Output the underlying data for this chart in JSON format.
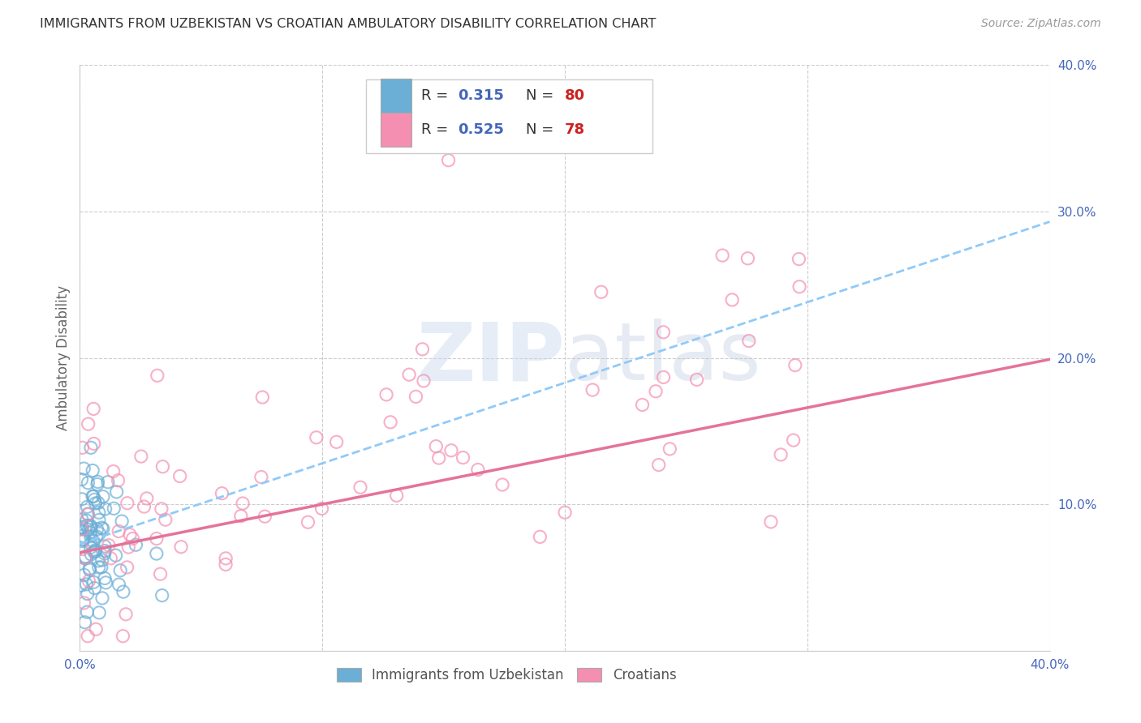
{
  "title": "IMMIGRANTS FROM UZBEKISTAN VS CROATIAN AMBULATORY DISABILITY CORRELATION CHART",
  "source": "Source: ZipAtlas.com",
  "ylabel": "Ambulatory Disability",
  "xlim": [
    0.0,
    0.4
  ],
  "ylim": [
    0.0,
    0.4
  ],
  "xticks": [
    0.0,
    0.1,
    0.2,
    0.3,
    0.4
  ],
  "yticks": [
    0.0,
    0.1,
    0.2,
    0.3,
    0.4
  ],
  "xtick_labels": [
    "0.0%",
    "",
    "",
    "",
    "40.0%"
  ],
  "ytick_labels": [
    "",
    "10.0%",
    "20.0%",
    "30.0%",
    "40.0%"
  ],
  "uzbek_color": "#6baed6",
  "croatian_color": "#f48fb1",
  "uzbek_R": 0.315,
  "uzbek_N": 80,
  "croatian_R": 0.525,
  "croatian_N": 78,
  "background_color": "#ffffff",
  "grid_color": "#cccccc",
  "uzbek_line_color": "#90caf9",
  "croatian_line_color": "#e57399",
  "legend_label_uzbek": "Immigrants from Uzbekistan",
  "legend_label_croatian": "Croatians",
  "watermark_color": "#d0dff0",
  "title_color": "#333333",
  "source_color": "#999999",
  "axis_label_color": "#666666",
  "tick_color": "#4466bb",
  "r_color": "#4466bb",
  "n_color": "#cc2222"
}
